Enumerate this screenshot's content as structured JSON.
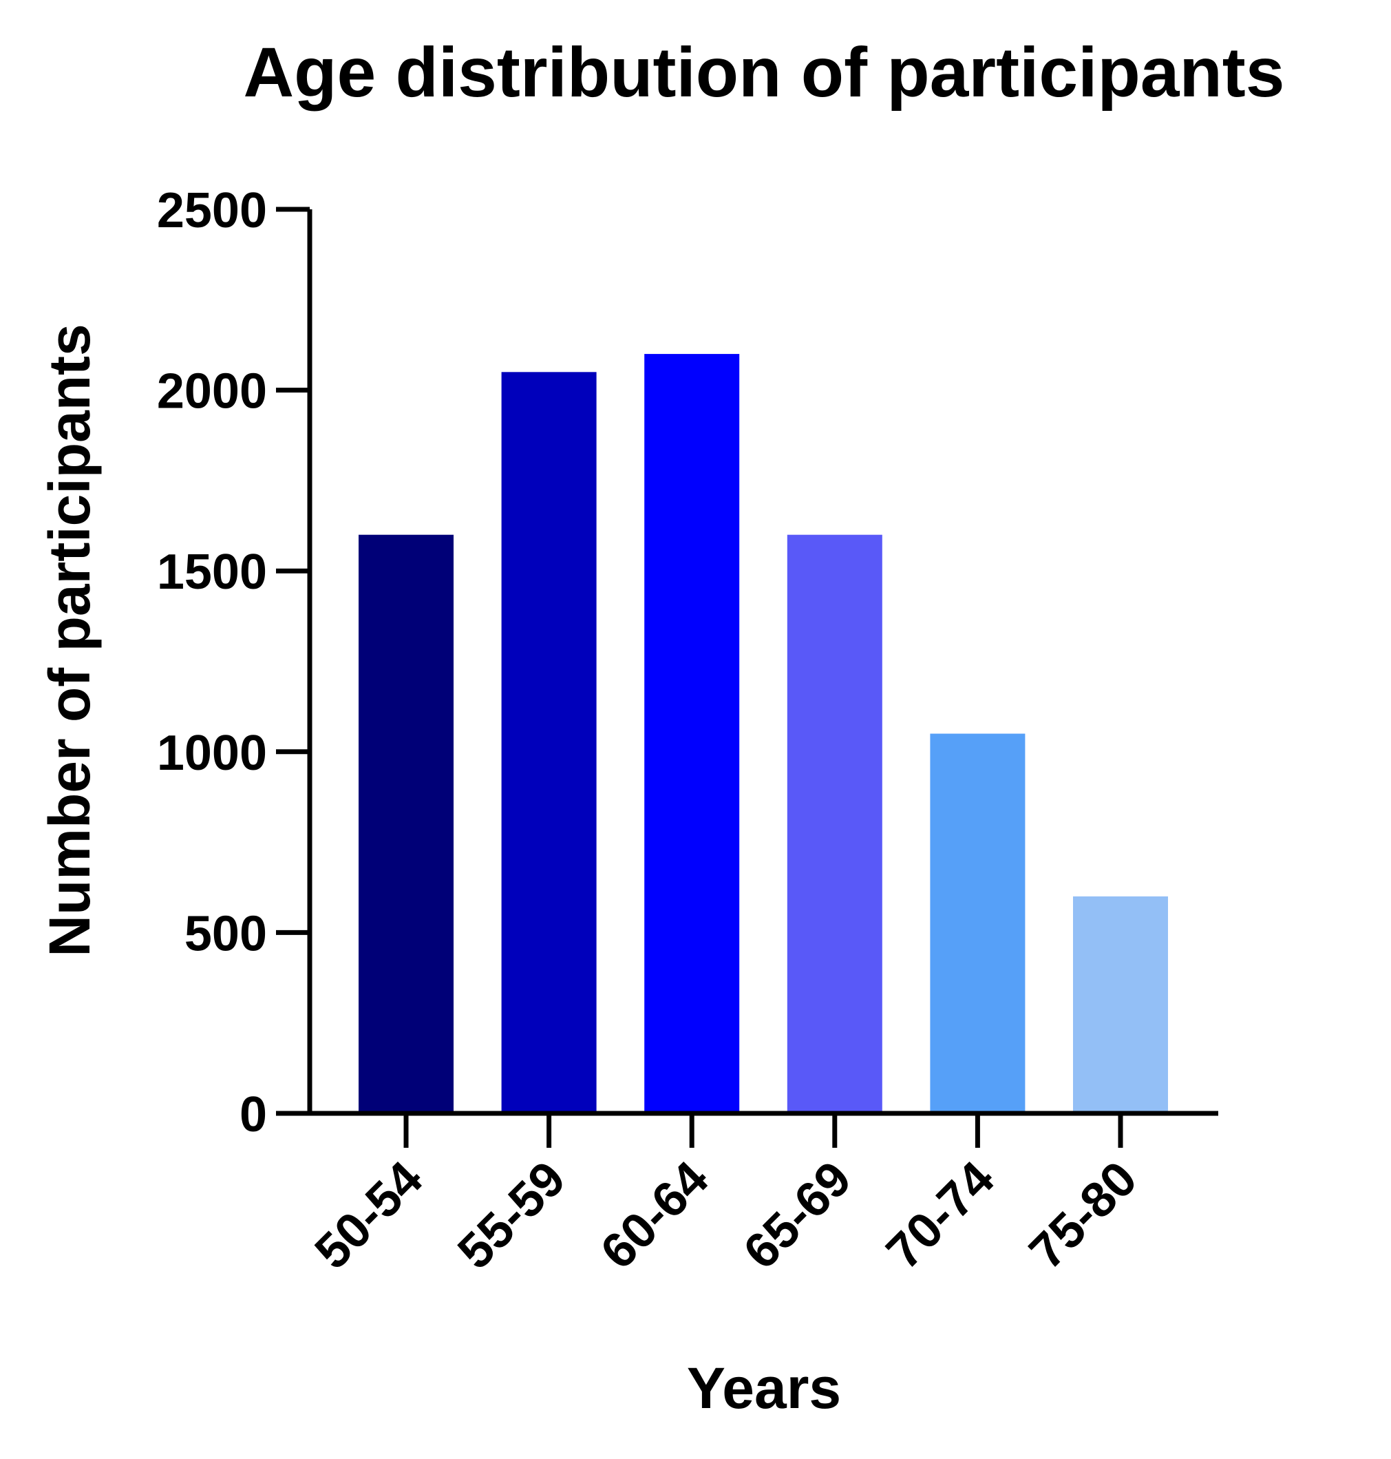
{
  "chart_data": {
    "type": "bar",
    "title": "Age distribution of participants",
    "xlabel": "Years",
    "ylabel": "Number of participants",
    "categories": [
      "50-54",
      "55-59",
      "60-64",
      "65-69",
      "70-74",
      "75-80"
    ],
    "values": [
      1600,
      2050,
      2100,
      1600,
      1050,
      600
    ],
    "colors": [
      "#000077",
      "#0000BB",
      "#0000FF",
      "#5959F8",
      "#56A0F8",
      "#93BFF6"
    ],
    "ylim": [
      0,
      2500
    ],
    "yticks": [
      "0",
      "500",
      "1000",
      "1500",
      "2000",
      "2500"
    ],
    "grid": false,
    "legend": "none"
  }
}
